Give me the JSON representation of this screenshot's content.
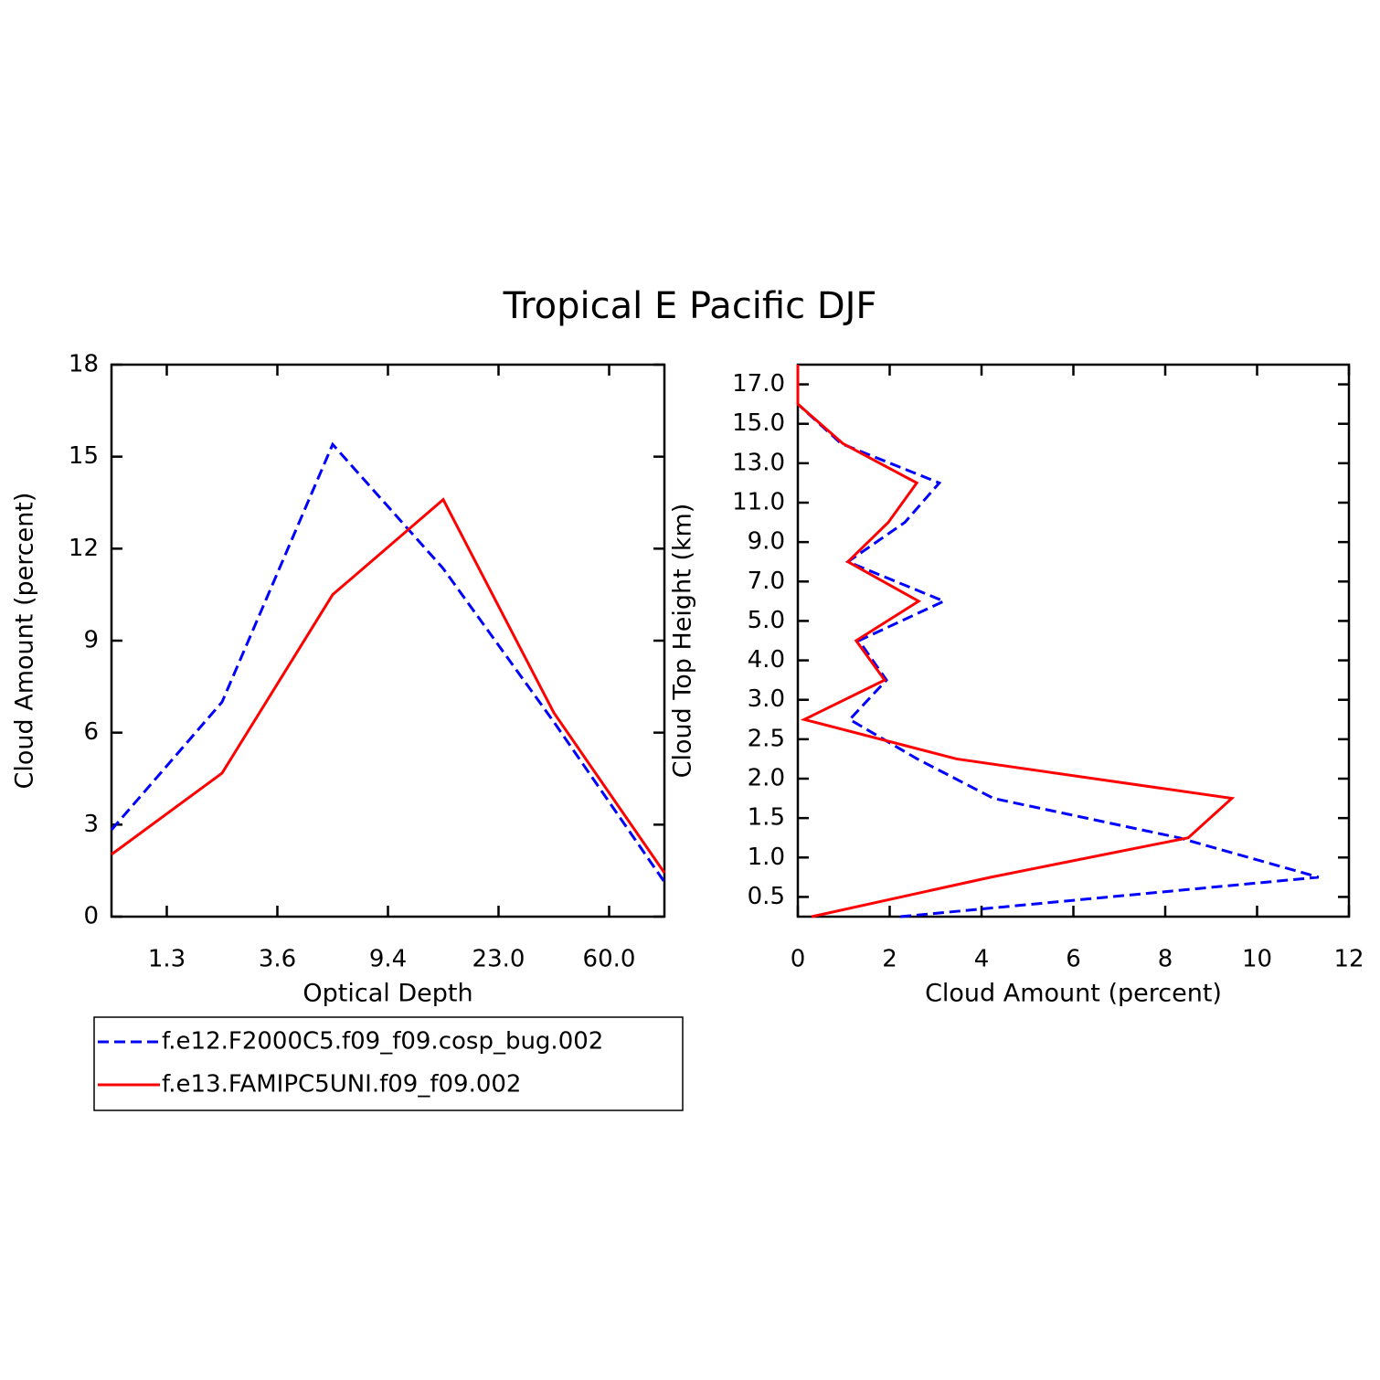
{
  "title": "Tropical E Pacific DJF",
  "chart_data": [
    {
      "type": "line",
      "orientation": "vertical",
      "xlabel": "Optical Depth",
      "ylabel": "Cloud Amount (percent)",
      "x": [
        0,
        1,
        2,
        3,
        4,
        5
      ],
      "xlim": [
        0,
        5
      ],
      "xticks": [
        {
          "value": 0.5,
          "label": "1.3"
        },
        {
          "value": 1.5,
          "label": "3.6"
        },
        {
          "value": 2.5,
          "label": "9.4"
        },
        {
          "value": 3.5,
          "label": "23.0"
        },
        {
          "value": 4.5,
          "label": "60.0"
        }
      ],
      "ylim": [
        0,
        18
      ],
      "yticks": [
        0,
        3,
        6,
        9,
        12,
        15,
        18
      ],
      "series": [
        {
          "name": "f.e12.F2000C5.f09_f09.cosp_bug.002",
          "color": "#0000ff",
          "dash": true,
          "values": [
            2.83,
            7.0,
            15.4,
            11.35,
            6.35,
            1.13
          ]
        },
        {
          "name": "f.e13.FAMIPC5UNI.f09_f09.002",
          "color": "#ff0000",
          "dash": false,
          "values": [
            2.03,
            4.68,
            10.5,
            13.6,
            6.65,
            1.43
          ]
        }
      ]
    },
    {
      "type": "line",
      "orientation": "horizontal",
      "xlabel": "Cloud Amount (percent)",
      "ylabel": "Cloud Top Height (km)",
      "y": [
        0,
        1,
        2,
        3,
        4,
        5,
        6,
        7,
        8,
        9,
        10,
        11,
        12,
        13,
        14
      ],
      "ylim": [
        0,
        14
      ],
      "yticks": [
        {
          "value": 0.5,
          "label": "0.5"
        },
        {
          "value": 1.5,
          "label": "1.0"
        },
        {
          "value": 2.5,
          "label": "1.5"
        },
        {
          "value": 3.5,
          "label": "2.0"
        },
        {
          "value": 4.5,
          "label": "2.5"
        },
        {
          "value": 5.5,
          "label": "3.0"
        },
        {
          "value": 6.5,
          "label": "4.0"
        },
        {
          "value": 7.5,
          "label": "5.0"
        },
        {
          "value": 8.5,
          "label": "7.0"
        },
        {
          "value": 9.5,
          "label": "9.0"
        },
        {
          "value": 10.5,
          "label": "11.0"
        },
        {
          "value": 11.5,
          "label": "13.0"
        },
        {
          "value": 12.5,
          "label": "15.0"
        },
        {
          "value": 13.5,
          "label": "17.0"
        }
      ],
      "xlim": [
        0,
        12
      ],
      "xticks": [
        0,
        2,
        4,
        6,
        8,
        10,
        12
      ],
      "series": [
        {
          "color": "#0000ff",
          "dash": true,
          "values": [
            2.23,
            11.34,
            8.3,
            4.26,
            2.6,
            1.13,
            1.93,
            1.33,
            3.18,
            1.09,
            2.33,
            3.08,
            0.94,
            0,
            0
          ]
        },
        {
          "color": "#ff0000",
          "dash": false,
          "values": [
            0.3,
            4.2,
            8.5,
            9.45,
            3.46,
            0.14,
            1.89,
            1.27,
            2.63,
            1.09,
            1.97,
            2.59,
            0.98,
            0,
            0
          ]
        }
      ]
    }
  ]
}
